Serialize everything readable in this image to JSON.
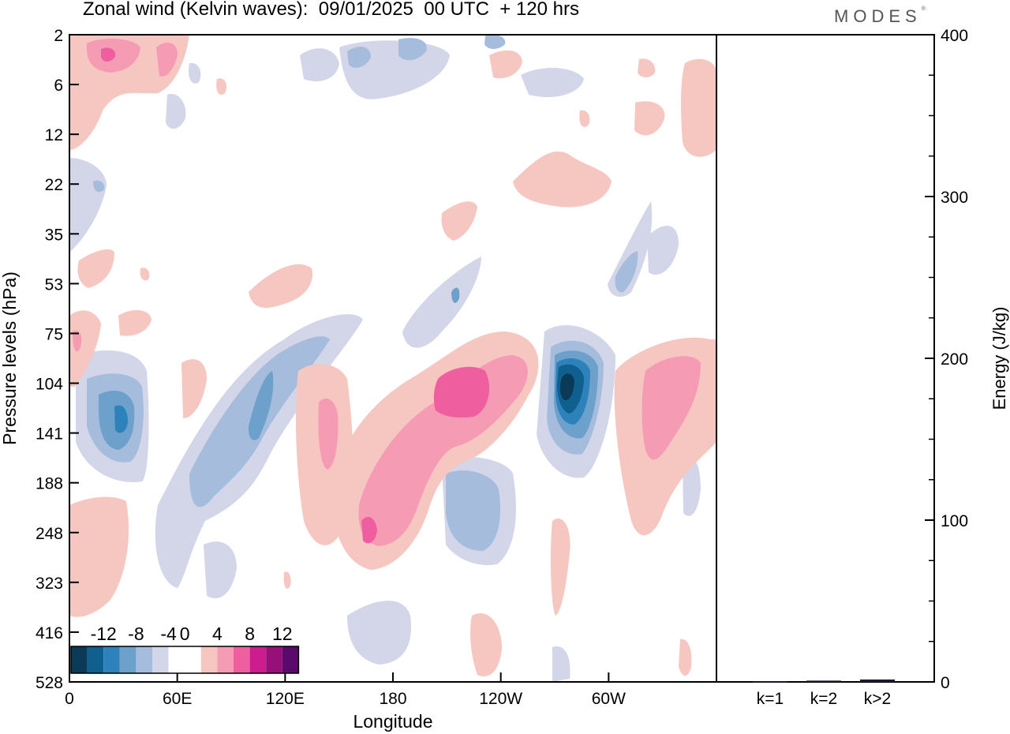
{
  "title": "Zonal wind (Kelvin waves):  09/01/2025  00 UTC  + 120 hrs",
  "logo": "MODES",
  "colors": {
    "negative": [
      "#0b3a58",
      "#0f5f8f",
      "#2e82bb",
      "#6ea0cc",
      "#a6bcdc",
      "#d2d6e8"
    ],
    "zero": "#ffffff",
    "positive": [
      "#f6c6c0",
      "#f59cb4",
      "#ef5e9e",
      "#cc1c8d",
      "#96107a",
      "#5a0a6a"
    ],
    "bar_fill": "#1a1a3a"
  },
  "chart_data": [
    {
      "type": "heatmap",
      "title": "Zonal wind (Kelvin waves):  09/01/2025  00 UTC  + 120 hrs",
      "xlabel": "Longitude",
      "ylabel": "Pressure levels (hPa)",
      "x_ticks": [
        "0",
        "60E",
        "120E",
        "180",
        "120W",
        "60W"
      ],
      "x_tick_degrees": [
        0,
        60,
        120,
        180,
        240,
        300
      ],
      "xlim": [
        0,
        360
      ],
      "y_ticks": [
        "2",
        "6",
        "12",
        "22",
        "35",
        "53",
        "75",
        "104",
        "141",
        "188",
        "248",
        "323",
        "416",
        "528"
      ],
      "y_scale": "log-like (pressure)",
      "colorbar": {
        "labels": [
          "-12",
          "-8",
          "-4",
          "0",
          "4",
          "8",
          "12"
        ],
        "levels": [
          -14,
          -12,
          -10,
          -8,
          -6,
          -4,
          -2,
          2,
          4,
          6,
          8,
          10,
          12,
          14
        ],
        "placement": "bottom-left, inside plot"
      },
      "features": [
        {
          "lon": 25,
          "level": "120",
          "sign": "negative",
          "peak": -8
        },
        {
          "lon": 60,
          "level": "155",
          "sign": "negative",
          "peak": -6
        },
        {
          "lon": 100,
          "level": "110",
          "sign": "negative",
          "peak": -6
        },
        {
          "lon": 170,
          "level": "160",
          "sign": "positive",
          "peak": 4
        },
        {
          "lon": 215,
          "level": "115",
          "sign": "positive",
          "peak": 8
        },
        {
          "lon": 225,
          "level": "200",
          "sign": "negative",
          "peak": -6
        },
        {
          "lon": 278,
          "level": "110",
          "sign": "negative",
          "peak": -14
        },
        {
          "lon": 325,
          "level": "125",
          "sign": "positive",
          "peak": 6
        },
        {
          "lon": 20,
          "level": "4",
          "sign": "positive",
          "peak": 6
        }
      ]
    },
    {
      "type": "bar",
      "ylabel": "Energy (J/kg)",
      "categories": [
        "k=1",
        "k=2",
        "k>2"
      ],
      "values": [
        0.4,
        0.8,
        1.5
      ],
      "ylim": [
        0,
        400
      ],
      "y_ticks": [
        "0",
        "100",
        "200",
        "300",
        "400"
      ]
    }
  ]
}
